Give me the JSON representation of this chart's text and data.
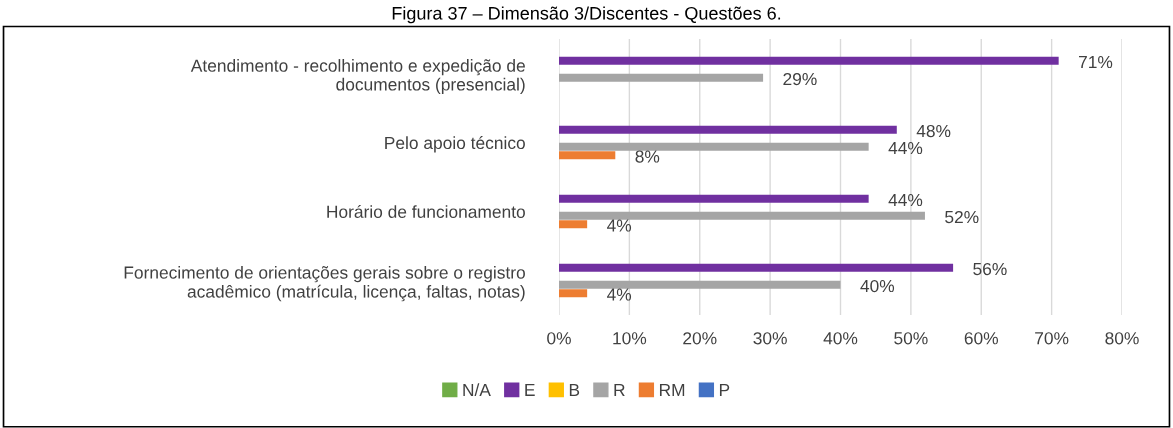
{
  "chart_data": {
    "type": "bar",
    "orientation": "horizontal",
    "title": "Figura 37 – Dimensão 3/Discentes - Questões 6.",
    "categories": [
      "Atendimento - recolhimento e expedição de\ndocumentos (presencial)",
      "Pelo apoio técnico",
      "Horário de funcionamento",
      "Fornecimento de orientações gerais sobre o registro\nacadêmico (matrícula, licença, faltas, notas)"
    ],
    "series": [
      {
        "name": "N/A",
        "color": "#70ad47",
        "values": [
          null,
          null,
          null,
          null
        ]
      },
      {
        "name": "E",
        "color": "#7030a0",
        "values": [
          71,
          48,
          44,
          56
        ],
        "value_labels": [
          "71%",
          "48%",
          "44%",
          "56%"
        ]
      },
      {
        "name": "B",
        "color": "#ffc000",
        "values": [
          null,
          null,
          null,
          null
        ]
      },
      {
        "name": "R",
        "color": "#a5a5a5",
        "values": [
          29,
          44,
          52,
          40
        ],
        "value_labels": [
          "29%",
          "44%",
          "52%",
          "40%"
        ]
      },
      {
        "name": "RM",
        "color": "#ed7d31",
        "values": [
          null,
          8,
          4,
          4
        ],
        "value_labels": [
          null,
          "8%",
          "4%",
          "4%"
        ]
      },
      {
        "name": "P",
        "color": "#4472c4",
        "values": [
          null,
          null,
          null,
          null
        ]
      }
    ],
    "xlim": [
      0,
      80
    ],
    "xticks": [
      {
        "value": 0,
        "label": "0%"
      },
      {
        "value": 10,
        "label": "10%"
      },
      {
        "value": 20,
        "label": "20%"
      },
      {
        "value": 30,
        "label": "30%"
      },
      {
        "value": 40,
        "label": "40%"
      },
      {
        "value": 50,
        "label": "50%"
      },
      {
        "value": 60,
        "label": "60%"
      },
      {
        "value": 70,
        "label": "70%"
      },
      {
        "value": 80,
        "label": "80%"
      }
    ],
    "grid": "x",
    "legend": "bottom"
  }
}
